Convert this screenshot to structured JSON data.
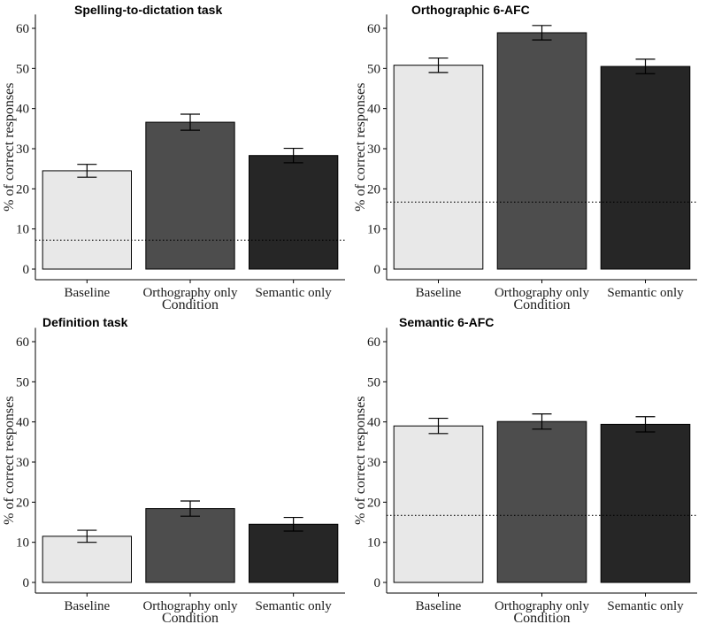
{
  "chart_data": [
    {
      "type": "bar",
      "title": "Spelling-to-dictation task",
      "xlabel": "Condition",
      "ylabel": "% of correct responses",
      "categories": [
        "Baseline",
        "Orthography only",
        "Semantic only"
      ],
      "values": [
        24.5,
        36.6,
        28.3
      ],
      "error": [
        1.6,
        2.0,
        1.8
      ],
      "chance_level": 7.2,
      "ylim": [
        0,
        63
      ],
      "yticks": [
        "0",
        "10",
        "20",
        "30",
        "40",
        "50",
        "60"
      ],
      "colors": [
        "#e8e8e8",
        "#4d4d4d",
        "#262626"
      ]
    },
    {
      "type": "bar",
      "title": "Orthographic 6-AFC",
      "xlabel": "Condition",
      "ylabel": "% of correct responses",
      "categories": [
        "Baseline",
        "Orthography only",
        "Semantic only"
      ],
      "values": [
        50.8,
        58.9,
        50.5
      ],
      "error": [
        1.8,
        1.8,
        1.8
      ],
      "chance_level": 16.7,
      "ylim": [
        0,
        63
      ],
      "yticks": [
        "0",
        "10",
        "20",
        "30",
        "40",
        "50",
        "60"
      ],
      "colors": [
        "#e8e8e8",
        "#4d4d4d",
        "#262626"
      ]
    },
    {
      "type": "bar",
      "title": "Definition task",
      "xlabel": "Condition",
      "ylabel": "% of correct responses",
      "categories": [
        "Baseline",
        "Orthography only",
        "Semantic only"
      ],
      "values": [
        11.5,
        18.4,
        14.5
      ],
      "error": [
        1.5,
        1.9,
        1.7
      ],
      "chance_level": null,
      "ylim": [
        0,
        63
      ],
      "yticks": [
        "0",
        "10",
        "20",
        "30",
        "40",
        "50",
        "60"
      ],
      "colors": [
        "#e8e8e8",
        "#4d4d4d",
        "#262626"
      ]
    },
    {
      "type": "bar",
      "title": "Semantic 6-AFC",
      "xlabel": "Condition",
      "ylabel": "% of correct responses",
      "categories": [
        "Baseline",
        "Orthography only",
        "Semantic only"
      ],
      "values": [
        39.0,
        40.1,
        39.4
      ],
      "error": [
        1.9,
        1.9,
        1.9
      ],
      "chance_level": 16.7,
      "ylim": [
        0,
        63
      ],
      "yticks": [
        "0",
        "10",
        "20",
        "30",
        "40",
        "50",
        "60"
      ],
      "colors": [
        "#e8e8e8",
        "#4d4d4d",
        "#262626"
      ]
    }
  ]
}
